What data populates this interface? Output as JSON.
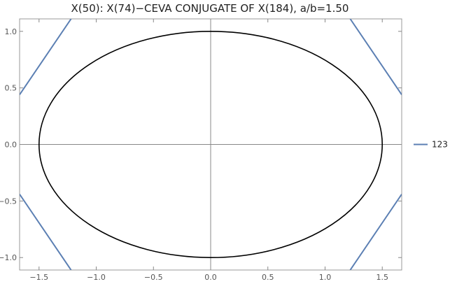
{
  "chart_data": {
    "type": "line",
    "title": "X(50): X(74)−CEVA CONJUGATE OF X(184), a/b=1.50",
    "xlabel": "",
    "ylabel": "",
    "xlim": [
      -1.67,
      1.67
    ],
    "ylim": [
      -1.11,
      1.11
    ],
    "x_ticks": [
      -1.5,
      -1.0,
      -0.5,
      0.0,
      0.5,
      1.0,
      1.5
    ],
    "x_tick_labels": [
      "−1.5",
      "−1.0",
      "−0.5",
      "0.0",
      "0.5",
      "1.0",
      "1.5"
    ],
    "y_ticks": [
      -1.0,
      -0.5,
      0.0,
      0.5,
      1.0
    ],
    "y_tick_labels": [
      "−1.0",
      "−0.5",
      "0.0",
      "0.5",
      "1.0"
    ],
    "grid": false,
    "axes_through_origin": true,
    "ellipse": {
      "a": 1.5,
      "b": 1.0,
      "color": "#000000"
    },
    "series": [
      {
        "name": "123",
        "color": "#5b7fb3",
        "segments": [
          [
            [
              -1.67,
              0.44
            ],
            [
              -1.22,
              1.11
            ]
          ],
          [
            [
              1.22,
              1.11
            ],
            [
              1.67,
              0.44
            ]
          ],
          [
            [
              -1.67,
              -0.44
            ],
            [
              -1.22,
              -1.11
            ]
          ],
          [
            [
              1.22,
              -1.11
            ],
            [
              1.67,
              -0.44
            ]
          ]
        ]
      }
    ],
    "legend_position": "right"
  }
}
